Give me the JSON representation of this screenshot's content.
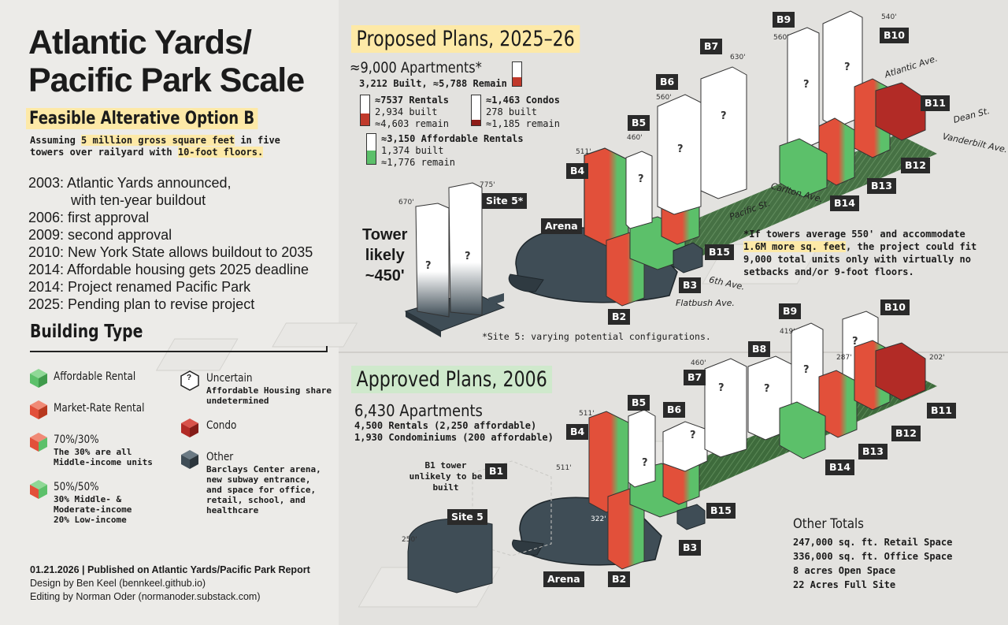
{
  "title_line1": "Atlantic Yards/",
  "title_line2": "Pacific Park Scale",
  "subtitle": "Feasible Alterative Option B",
  "assumption": {
    "p1": "Assuming ",
    "h1": "5 million gross square feet",
    "p2": " in five towers over railyard with ",
    "h2": "10-foot floors.",
    "p3": ""
  },
  "timeline": [
    "2003: Atlantic Yards announced,",
    "with ten-year buildout",
    "2006: first approval",
    "2009: second approval",
    "2010: New York State allows buildout to 2035",
    "2014: Affordable housing gets 2025 deadline",
    "2014: Project renamed Pacific Park",
    "2025: Pending plan to revise project"
  ],
  "building_type_title": "Building Type",
  "legend": {
    "affordable": {
      "label": "Affordable Rental",
      "color": "#5cc06a"
    },
    "market": {
      "label": "Market-Rate Rental",
      "color": "#e2503a"
    },
    "seventy": {
      "label": "70%/30%",
      "desc1": "The 30% are all",
      "desc2": "Middle-income units"
    },
    "fifty": {
      "label": "50%/50%",
      "desc1": "30% Middle- &",
      "desc2": "Moderate-income",
      "desc3": "20% Low-income"
    },
    "uncertain": {
      "label": "Uncertain",
      "desc1": "Affordable Housing share",
      "desc2": "undetermined",
      "glyph": "?"
    },
    "condo": {
      "label": "Condo",
      "color": "#b22b26"
    },
    "other": {
      "label": "Other",
      "desc1": "Barclays Center arena,",
      "desc2": "new subway entrance,",
      "desc3": "and space for office,",
      "desc4": "retail, school, and",
      "desc5": "healthcare",
      "color": "#3f4d56"
    }
  },
  "credits": {
    "line1": "01.21.2026 | Published on Atlantic Yards/Pacific Park Report",
    "line2": "Design by Ben Keel (bennkeel.github.io)",
    "line3": "Editing by Norman Oder (normanoder.substack.com)"
  },
  "proposed": {
    "title": "Proposed Plans, 2025–26",
    "apartments": "≈9,000 Apartments*",
    "apartments_sub": "3,212 Built, ≈5,788 Remain",
    "apartments_built_fraction": 0.357,
    "rentals": {
      "head": "≈7537 Rentals",
      "built": "2,934 built",
      "remain": "≈4,603 remain",
      "built_fraction": 0.389
    },
    "condos": {
      "head": "≈1,463 Condos",
      "built": "278 built",
      "remain": "≈1,185 remain",
      "built_fraction": 0.19
    },
    "affordable": {
      "head": "≈3,150 Affordable Rentals",
      "built": "1,374 built",
      "remain": "≈1,776 remain",
      "built_fraction": 0.436
    },
    "tower_note": {
      "l1": "Tower",
      "l2": "likely",
      "l3": "~450'"
    },
    "footnote": {
      "pre": "*If towers average 550' and accommodate ",
      "hl": "1.6M more sq. feet",
      "post": ", the project could fit 9,000 total units only with virtually no setbacks and/or 9-foot floors."
    },
    "site5_note": "*Site 5: varying potential configurations.",
    "labels": {
      "b2": "B2",
      "b3": "B3",
      "b4": "B4",
      "b5": "B5",
      "b6": "B6",
      "b7": "B7",
      "b9": "B9",
      "b10": "B10",
      "b11": "B11",
      "b12": "B12",
      "b13": "B13",
      "b14": "B14",
      "b15": "B15",
      "site5": "Site 5*",
      "arena": "Arena"
    },
    "heights": {
      "h775": "775'",
      "h670": "670'",
      "h511": "511'",
      "h460": "460'",
      "h560a": "560'",
      "h630": "630'",
      "h560b": "560'",
      "h540": "540'"
    },
    "streets": {
      "atlantic": "Atlantic Ave.",
      "dean": "Dean St.",
      "vanderbilt": "Vanderbilt Ave.",
      "carlton": "Carlton Ave.",
      "pacific": "Pacific St.",
      "sixth": "6th Ave.",
      "flatbush": "Flatbush Ave."
    }
  },
  "approved": {
    "title": "Approved Plans, 2006",
    "apartments": "6,430 Apartments",
    "line1": "4,500 Rentals (2,250 affordable)",
    "line2": "1,930 Condominiums (200 affordable)",
    "b1_note": "B1 tower unlikely to be built",
    "labels": {
      "b1": "B1",
      "b2": "B2",
      "b3": "B3",
      "b4": "B4",
      "b5": "B5",
      "b6": "B6",
      "b7": "B7",
      "b8": "B8",
      "b9": "B9",
      "b10": "B10",
      "b11": "B11",
      "b12": "B12",
      "b13": "B13",
      "b14": "B14",
      "b15": "B15",
      "site5": "Site 5",
      "arena": "Arena"
    },
    "heights": {
      "h511a": "511'",
      "h511b": "511'",
      "h460": "460'",
      "h419": "419'",
      "h287": "287'",
      "h202": "202'",
      "h322": "322'",
      "h250": "250'"
    },
    "other_totals": {
      "head": "Other Totals",
      "l1": "247,000 sq. ft. Retail Space",
      "l2": "336,000 sq. ft. Office Space",
      "l3": "8 acres Open Space",
      "l4": "22 Acres Full Site"
    }
  },
  "colors": {
    "highlight": "#fde9a7",
    "green_title": "#cfe9cc",
    "affordable": "#5cc06a",
    "market": "#e2503a",
    "condo": "#b22b26",
    "other": "#3f4d56"
  }
}
